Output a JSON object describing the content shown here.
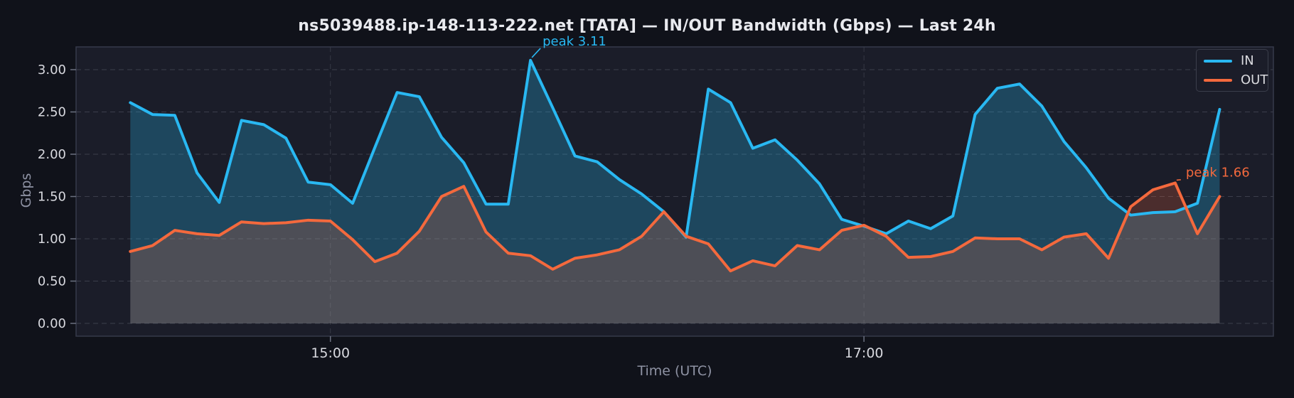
{
  "chart_data": {
    "type": "area",
    "title": "ns5039488.ip-148-113-222.net [TATA] — IN/OUT Bandwidth (Gbps) — Last 24h",
    "xlabel": "Time (UTC)",
    "ylabel": "Gbps",
    "grid": true,
    "legend_position": "upper right",
    "ylim": [
      -0.15,
      3.3
    ],
    "yticks": [
      0,
      0.5,
      1,
      1.5,
      2,
      2.5,
      3
    ],
    "ytick_labels": [
      "0.00",
      "0.50",
      "1.00",
      "1.50",
      "2.00",
      "2.50",
      "3.00"
    ],
    "xtick_labels": [
      "15:00",
      "17:00"
    ],
    "xtick_indices": [
      9,
      33
    ],
    "x": [
      "14:15",
      "14:20",
      "14:25",
      "14:30",
      "14:35",
      "14:40",
      "14:45",
      "14:50",
      "14:55",
      "15:00",
      "15:05",
      "15:10",
      "15:15",
      "15:20",
      "15:25",
      "15:30",
      "15:35",
      "15:40",
      "15:45",
      "15:50",
      "15:55",
      "16:00",
      "16:05",
      "16:10",
      "16:15",
      "16:20",
      "16:25",
      "16:30",
      "16:35",
      "16:40",
      "16:45",
      "16:50",
      "16:55",
      "17:00",
      "17:05",
      "17:10",
      "17:15",
      "17:20",
      "17:25",
      "17:30",
      "17:35",
      "17:40",
      "17:45",
      "17:50",
      "17:55",
      "18:00",
      "18:05",
      "18:10",
      "18:15",
      "18:20"
    ],
    "series": [
      {
        "name": "IN",
        "color": "#29b8f2",
        "fill": "rgba(41,184,242,0.27)",
        "values": [
          2.61,
          2.47,
          2.46,
          1.78,
          1.43,
          2.4,
          2.35,
          2.19,
          1.67,
          1.64,
          1.42,
          2.08,
          2.73,
          2.68,
          2.2,
          1.9,
          1.41,
          1.41,
          3.11,
          2.55,
          1.98,
          1.91,
          1.7,
          1.53,
          1.32,
          1.02,
          2.77,
          2.61,
          2.07,
          2.17,
          1.93,
          1.65,
          1.23,
          1.15,
          1.06,
          1.21,
          1.12,
          1.27,
          2.47,
          2.78,
          2.83,
          2.57,
          2.15,
          1.84,
          1.48,
          1.28,
          1.31,
          1.32,
          1.42,
          2.53
        ]
      },
      {
        "name": "OUT",
        "color": "#f4693d",
        "fill": "rgba(244,105,61,0.22)",
        "values": [
          0.85,
          0.92,
          1.1,
          1.06,
          1.04,
          1.2,
          1.18,
          1.19,
          1.22,
          1.21,
          0.99,
          0.73,
          0.83,
          1.09,
          1.5,
          1.62,
          1.08,
          0.83,
          0.8,
          0.64,
          0.77,
          0.81,
          0.87,
          1.03,
          1.32,
          1.03,
          0.94,
          0.62,
          0.74,
          0.68,
          0.92,
          0.87,
          1.1,
          1.16,
          1.03,
          0.78,
          0.79,
          0.85,
          1.01,
          1.0,
          1.0,
          0.87,
          1.02,
          1.06,
          0.77,
          1.38,
          1.58,
          1.66,
          1.06,
          1.5
        ]
      }
    ],
    "annotations": [
      {
        "text": "peak 3.11",
        "series": "IN",
        "index": 18,
        "value": 3.11
      },
      {
        "text": "peak 1.66",
        "series": "OUT",
        "index": 47,
        "value": 1.66
      }
    ],
    "colors": {
      "figure_bg": "#10121a",
      "plot_bg": "#1b1d29",
      "gridline": "#3b3e4b",
      "spine": "#363a4a",
      "tick_label": "#d8d9df",
      "axis_label": "#8e92a3",
      "title": "#e9eaef",
      "legend_text": "#d9dade"
    }
  }
}
